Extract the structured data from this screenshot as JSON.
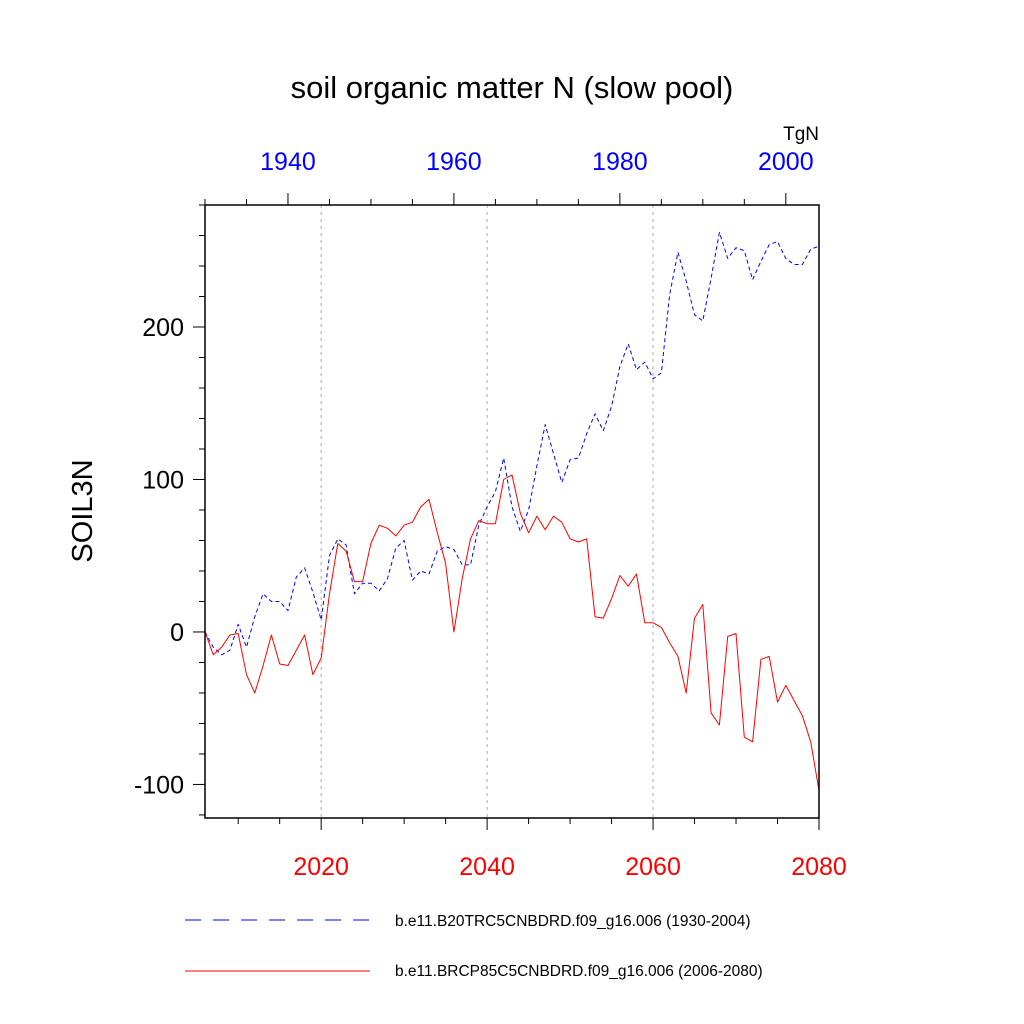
{
  "chart_data": {
    "type": "line",
    "title": "soil organic matter N (slow pool)",
    "ylabel": "SOIL3N",
    "units": "TgN",
    "ylim": [
      -122,
      280
    ],
    "yticks": [
      -100,
      0,
      100,
      200
    ],
    "grid": "vertical dotted",
    "legend_position": "bottom",
    "top_axis": {
      "color": "#0000ff",
      "xlim": [
        1930,
        2004
      ],
      "ticks": [
        1940,
        1960,
        1980,
        2000
      ]
    },
    "bottom_axis": {
      "color": "#ff0000",
      "xlim": [
        2006,
        2080
      ],
      "ticks": [
        2020,
        2040,
        2060,
        2080
      ]
    },
    "series": [
      {
        "name": "b.e11.B20TRC5CNBDRD.f09_g16.006 (1930-2004)",
        "axis": "top",
        "color": "#0000ff",
        "style": "dashed",
        "x": [
          1930,
          1931,
          1932,
          1933,
          1934,
          1935,
          1936,
          1937,
          1938,
          1939,
          1940,
          1941,
          1942,
          1943,
          1944,
          1945,
          1946,
          1947,
          1948,
          1949,
          1950,
          1951,
          1952,
          1953,
          1954,
          1955,
          1956,
          1957,
          1958,
          1959,
          1960,
          1961,
          1962,
          1963,
          1964,
          1965,
          1966,
          1967,
          1968,
          1969,
          1970,
          1971,
          1972,
          1973,
          1974,
          1975,
          1976,
          1977,
          1978,
          1979,
          1980,
          1981,
          1982,
          1983,
          1984,
          1985,
          1986,
          1987,
          1988,
          1989,
          1990,
          1991,
          1992,
          1993,
          1994,
          1995,
          1996,
          1997,
          1998,
          1999,
          2000,
          2001,
          2002,
          2003,
          2004
        ],
        "values": [
          0,
          -10,
          -15,
          -12,
          5,
          -10,
          10,
          25,
          20,
          20,
          14,
          36,
          42,
          26,
          8,
          50,
          61,
          57,
          25,
          32,
          32,
          27,
          35,
          55,
          60,
          34,
          40,
          38,
          53,
          56,
          54,
          44,
          44,
          70,
          82,
          92,
          114,
          82,
          66,
          80,
          109,
          136,
          117,
          98,
          113,
          114,
          130,
          143,
          132,
          148,
          174,
          189,
          172,
          177,
          166,
          170,
          221,
          249,
          230,
          208,
          204,
          232,
          262,
          245,
          252,
          250,
          231,
          243,
          254,
          256,
          245,
          241,
          241,
          251,
          253
        ]
      },
      {
        "name": "b.e11.BRCP85C5CNBDRD.f09_g16.006 (2006-2080)",
        "axis": "bottom",
        "color": "#ff0000",
        "style": "solid",
        "x": [
          2006,
          2007,
          2008,
          2009,
          2010,
          2011,
          2012,
          2013,
          2014,
          2015,
          2016,
          2017,
          2018,
          2019,
          2020,
          2021,
          2022,
          2023,
          2024,
          2025,
          2026,
          2027,
          2028,
          2029,
          2030,
          2031,
          2032,
          2033,
          2034,
          2035,
          2036,
          2037,
          2038,
          2039,
          2040,
          2041,
          2042,
          2043,
          2044,
          2045,
          2046,
          2047,
          2048,
          2049,
          2050,
          2051,
          2052,
          2053,
          2054,
          2055,
          2056,
          2057,
          2058,
          2059,
          2060,
          2061,
          2062,
          2063,
          2064,
          2065,
          2066,
          2067,
          2068,
          2069,
          2070,
          2071,
          2072,
          2073,
          2074,
          2075,
          2076,
          2077,
          2078,
          2079,
          2080
        ],
        "values": [
          0,
          -15,
          -10,
          -2,
          -1,
          -28,
          -40,
          -22,
          -2,
          -21,
          -22,
          -12,
          -2,
          -28,
          -17,
          25,
          58,
          53,
          33,
          33,
          58,
          70,
          68,
          63,
          70,
          72,
          82,
          87,
          65,
          45,
          0,
          35,
          61,
          73,
          71,
          71,
          100,
          103,
          78,
          65,
          76,
          67,
          76,
          72,
          61,
          59,
          61,
          10,
          9,
          22,
          37,
          30,
          38,
          6,
          6,
          3,
          -7,
          -16,
          -40,
          9,
          18,
          -53,
          -61,
          -3,
          -1,
          -69,
          -72,
          -18,
          -16,
          -46,
          -35,
          -45,
          -55,
          -72,
          -104
        ]
      }
    ]
  }
}
